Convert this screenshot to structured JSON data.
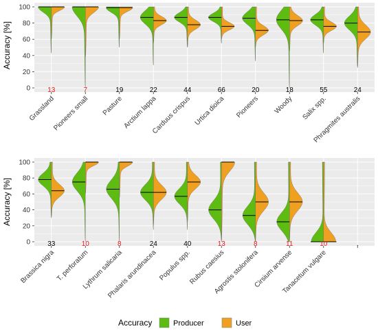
{
  "colors": {
    "producer": "#5dbb12",
    "user": "#f0a020",
    "panel": "#ebebeb",
    "grid": "#ffffff",
    "count_low": "#e41a1c",
    "count_ok": "#000000"
  },
  "legend": {
    "title": "Accuracy",
    "items": [
      "Producer",
      "User"
    ],
    "placement": "bottom"
  },
  "chart_data": [
    {
      "type": "violin",
      "subtype": "split-violin",
      "ylabel": "Accuracy [%]",
      "ylim": [
        0,
        100
      ],
      "yticks": [
        0,
        20,
        40,
        60,
        80,
        100
      ],
      "grid": true,
      "categories": [
        "Grassland",
        "Pioneers small",
        "Pasture",
        "Arctium lappa",
        "Carduus crispus",
        "Urtica dioica",
        "Pioneers",
        "Woody",
        "Salix spp.",
        "Phragmites australis"
      ],
      "counts": [
        "13",
        "7",
        "19",
        "22",
        "44",
        "66",
        "20",
        "18",
        "55",
        "24"
      ],
      "count_low": [
        true,
        true,
        false,
        false,
        false,
        false,
        false,
        false,
        false,
        false
      ],
      "series": [
        {
          "name": "Producer",
          "mean": [
            100,
            100,
            99,
            87,
            87,
            87,
            86,
            84,
            84,
            80
          ],
          "min": [
            43,
            0,
            50,
            28,
            50,
            55,
            33,
            0,
            43,
            25
          ]
        },
        {
          "name": "User",
          "mean": [
            100,
            100,
            99,
            83,
            78,
            76,
            71,
            83,
            76,
            69
          ],
          "min": [
            60,
            38,
            60,
            55,
            50,
            60,
            50,
            45,
            55,
            25
          ]
        }
      ]
    },
    {
      "type": "violin",
      "subtype": "split-violin",
      "ylabel": "Accuracy [%]",
      "ylim": [
        0,
        100
      ],
      "yticks": [
        0,
        20,
        40,
        60,
        80,
        100
      ],
      "grid": true,
      "categories": [
        "Brassica nigra",
        "T. perforatum",
        "Lythrum salicaria",
        "Phalaris arundinacea",
        "Populus spp.",
        "Rubus caesius",
        "Agrostis stolonifera",
        "Cirsium arvense",
        "Tanacetum vulgare",
        ""
      ],
      "counts": [
        "33",
        "10",
        "8",
        "24",
        "40",
        "13",
        "8",
        "11",
        "10",
        "."
      ],
      "count_low": [
        false,
        true,
        true,
        false,
        false,
        true,
        true,
        true,
        true,
        false
      ],
      "series": [
        {
          "name": "Producer",
          "mean": [
            78,
            75,
            66,
            62,
            57,
            40,
            33,
            25,
            0,
            null
          ],
          "min": [
            30,
            0,
            0,
            15,
            15,
            0,
            0,
            0,
            0,
            null
          ]
        },
        {
          "name": "User",
          "mean": [
            64,
            100,
            100,
            62,
            75,
            100,
            50,
            50,
            0,
            null
          ],
          "min": [
            30,
            60,
            55,
            20,
            25,
            0,
            0,
            0,
            0,
            null
          ]
        }
      ]
    }
  ]
}
